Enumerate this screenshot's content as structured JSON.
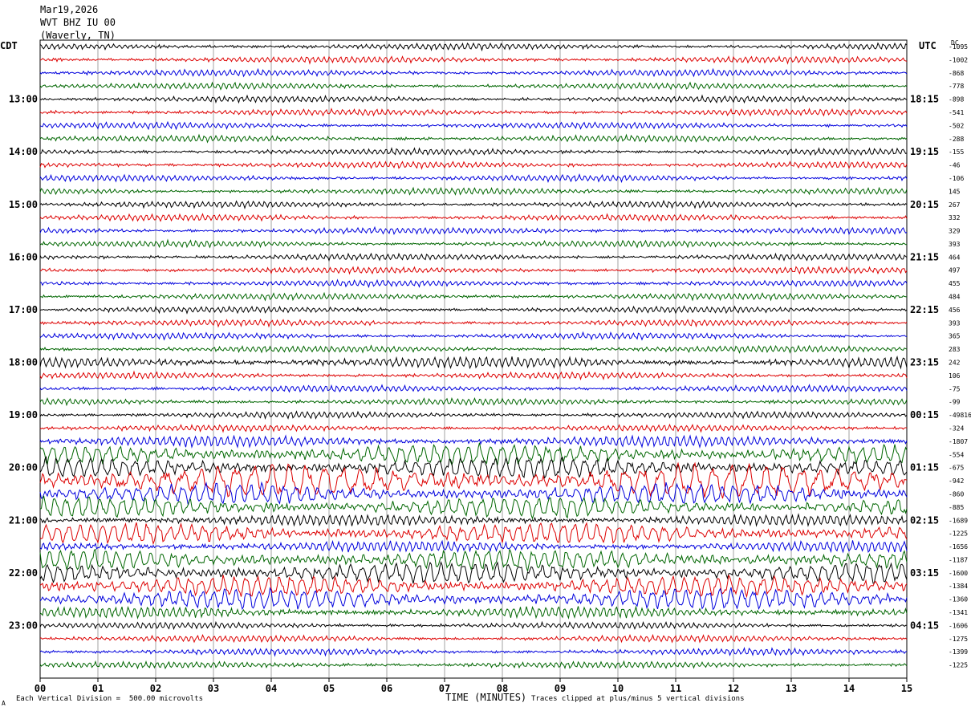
{
  "header": {
    "date": "Mar19,2026",
    "station": "WVT BHZ IU 00",
    "location": "(Waverly, TN)"
  },
  "left_tz": "CDT",
  "right_tz": "UTC",
  "right_col_header": "DC",
  "footer": {
    "scale_note": "Each Vertical Division =  500.00 microvolts",
    "xaxis_title": "TIME (MINUTES)",
    "clip_note": "Traces clipped at plus/minus 5 vertical divisions",
    "corner_mark": "A"
  },
  "trace_colors": [
    "#000000",
    "#dd0000",
    "#0000dd",
    "#006600"
  ],
  "chart_data": {
    "type": "line",
    "title": "",
    "xlabel": "TIME (MINUTES)",
    "ylabel": "",
    "x_ticks": [
      "00",
      "01",
      "02",
      "03",
      "04",
      "05",
      "06",
      "07",
      "08",
      "09",
      "10",
      "11",
      "12",
      "13",
      "14",
      "15"
    ],
    "xlim": [
      0,
      15
    ],
    "grid": true,
    "left_hour_labels": [
      "13:00",
      "14:00",
      "15:00",
      "16:00",
      "17:00",
      "18:00",
      "19:00",
      "20:00",
      "21:00",
      "22:00",
      "23:00"
    ],
    "right_hour_labels": [
      "18:15",
      "19:15",
      "20:15",
      "21:15",
      "22:15",
      "23:15",
      "00:15",
      "01:15",
      "02:15",
      "03:15",
      "04:15"
    ],
    "trace_count": 48,
    "dc_offsets": [
      "-1095",
      "-1002",
      "-868",
      "-778",
      "-898",
      "-541",
      "-502",
      "-288",
      "-155",
      "-46",
      "-106",
      "145",
      "267",
      "332",
      "329",
      "393",
      "464",
      "497",
      "455",
      "484",
      "456",
      "393",
      "365",
      "283",
      "242",
      "106",
      "-75",
      "-99",
      "-49816",
      "-324",
      "-1807",
      "-554",
      "-675",
      "-942",
      "-860",
      "-885",
      "-1689",
      "-1225",
      "-1656",
      "-1187",
      "-1600",
      "-1384",
      "-1360",
      "-1341",
      "-1606",
      "-1275",
      "-1399",
      "-1225"
    ],
    "activity_levels": [
      1,
      1,
      1,
      1,
      1,
      1,
      1,
      1,
      1,
      1,
      1,
      1,
      1,
      1,
      1,
      1,
      1,
      1,
      1,
      1,
      1,
      1,
      1,
      1,
      2,
      1,
      1,
      1,
      1,
      1,
      2,
      3,
      3,
      4,
      3,
      3,
      2,
      3,
      2,
      3,
      3,
      3,
      3,
      2,
      1,
      1,
      1,
      1
    ]
  }
}
